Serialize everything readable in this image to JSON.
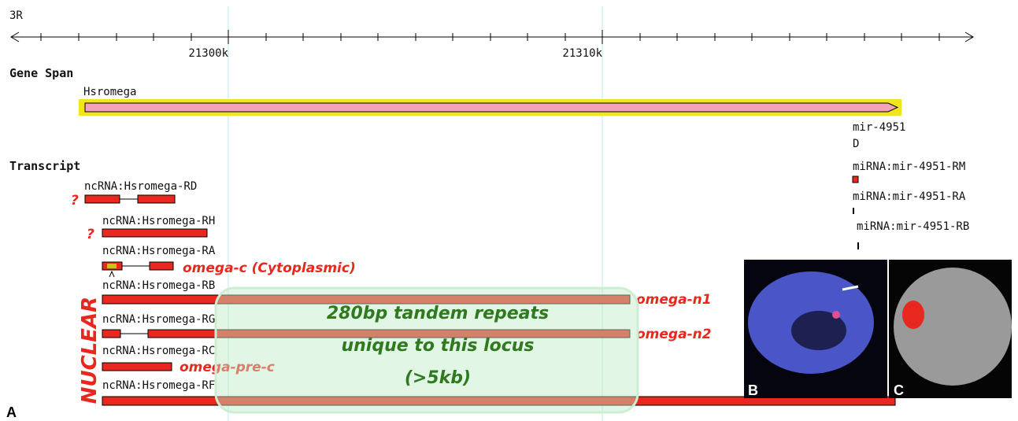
{
  "ruler": {
    "chromosome": "3R",
    "ticks": [
      "21300k",
      "21310k"
    ]
  },
  "gene_span": {
    "title": "Gene Span",
    "gene": "Hsromega",
    "mirna": "mir-4951",
    "mirna_glyph": "D"
  },
  "transcript": {
    "title": "Transcript",
    "rows": [
      "ncRNA:Hsromega-RD",
      "ncRNA:Hsromega-RH",
      "ncRNA:Hsromega-RA",
      "ncRNA:Hsromega-RB",
      "ncRNA:Hsromega-RG",
      "ncRNA:Hsromega-RC",
      "ncRNA:Hsromega-RF"
    ],
    "mirna_rows": [
      "miRNA:mir-4951-RM",
      "miRNA:mir-4951-RA",
      "miRNA:mir-4951-RB"
    ]
  },
  "annotations": {
    "question_1": "?",
    "question_2": "?",
    "omega_c": "omega-c (Cytoplasmic)",
    "omega_n1": "omega-n1",
    "omega_n2": "omega-n2",
    "omega_pre_c": "omega-pre-c",
    "nuclear": "NUCLEAR",
    "repeats": [
      "280bp tandem repeats",
      "unique to this locus",
      "(>5kb)"
    ]
  },
  "panels": {
    "a": "A",
    "b": "B",
    "c": "C"
  }
}
